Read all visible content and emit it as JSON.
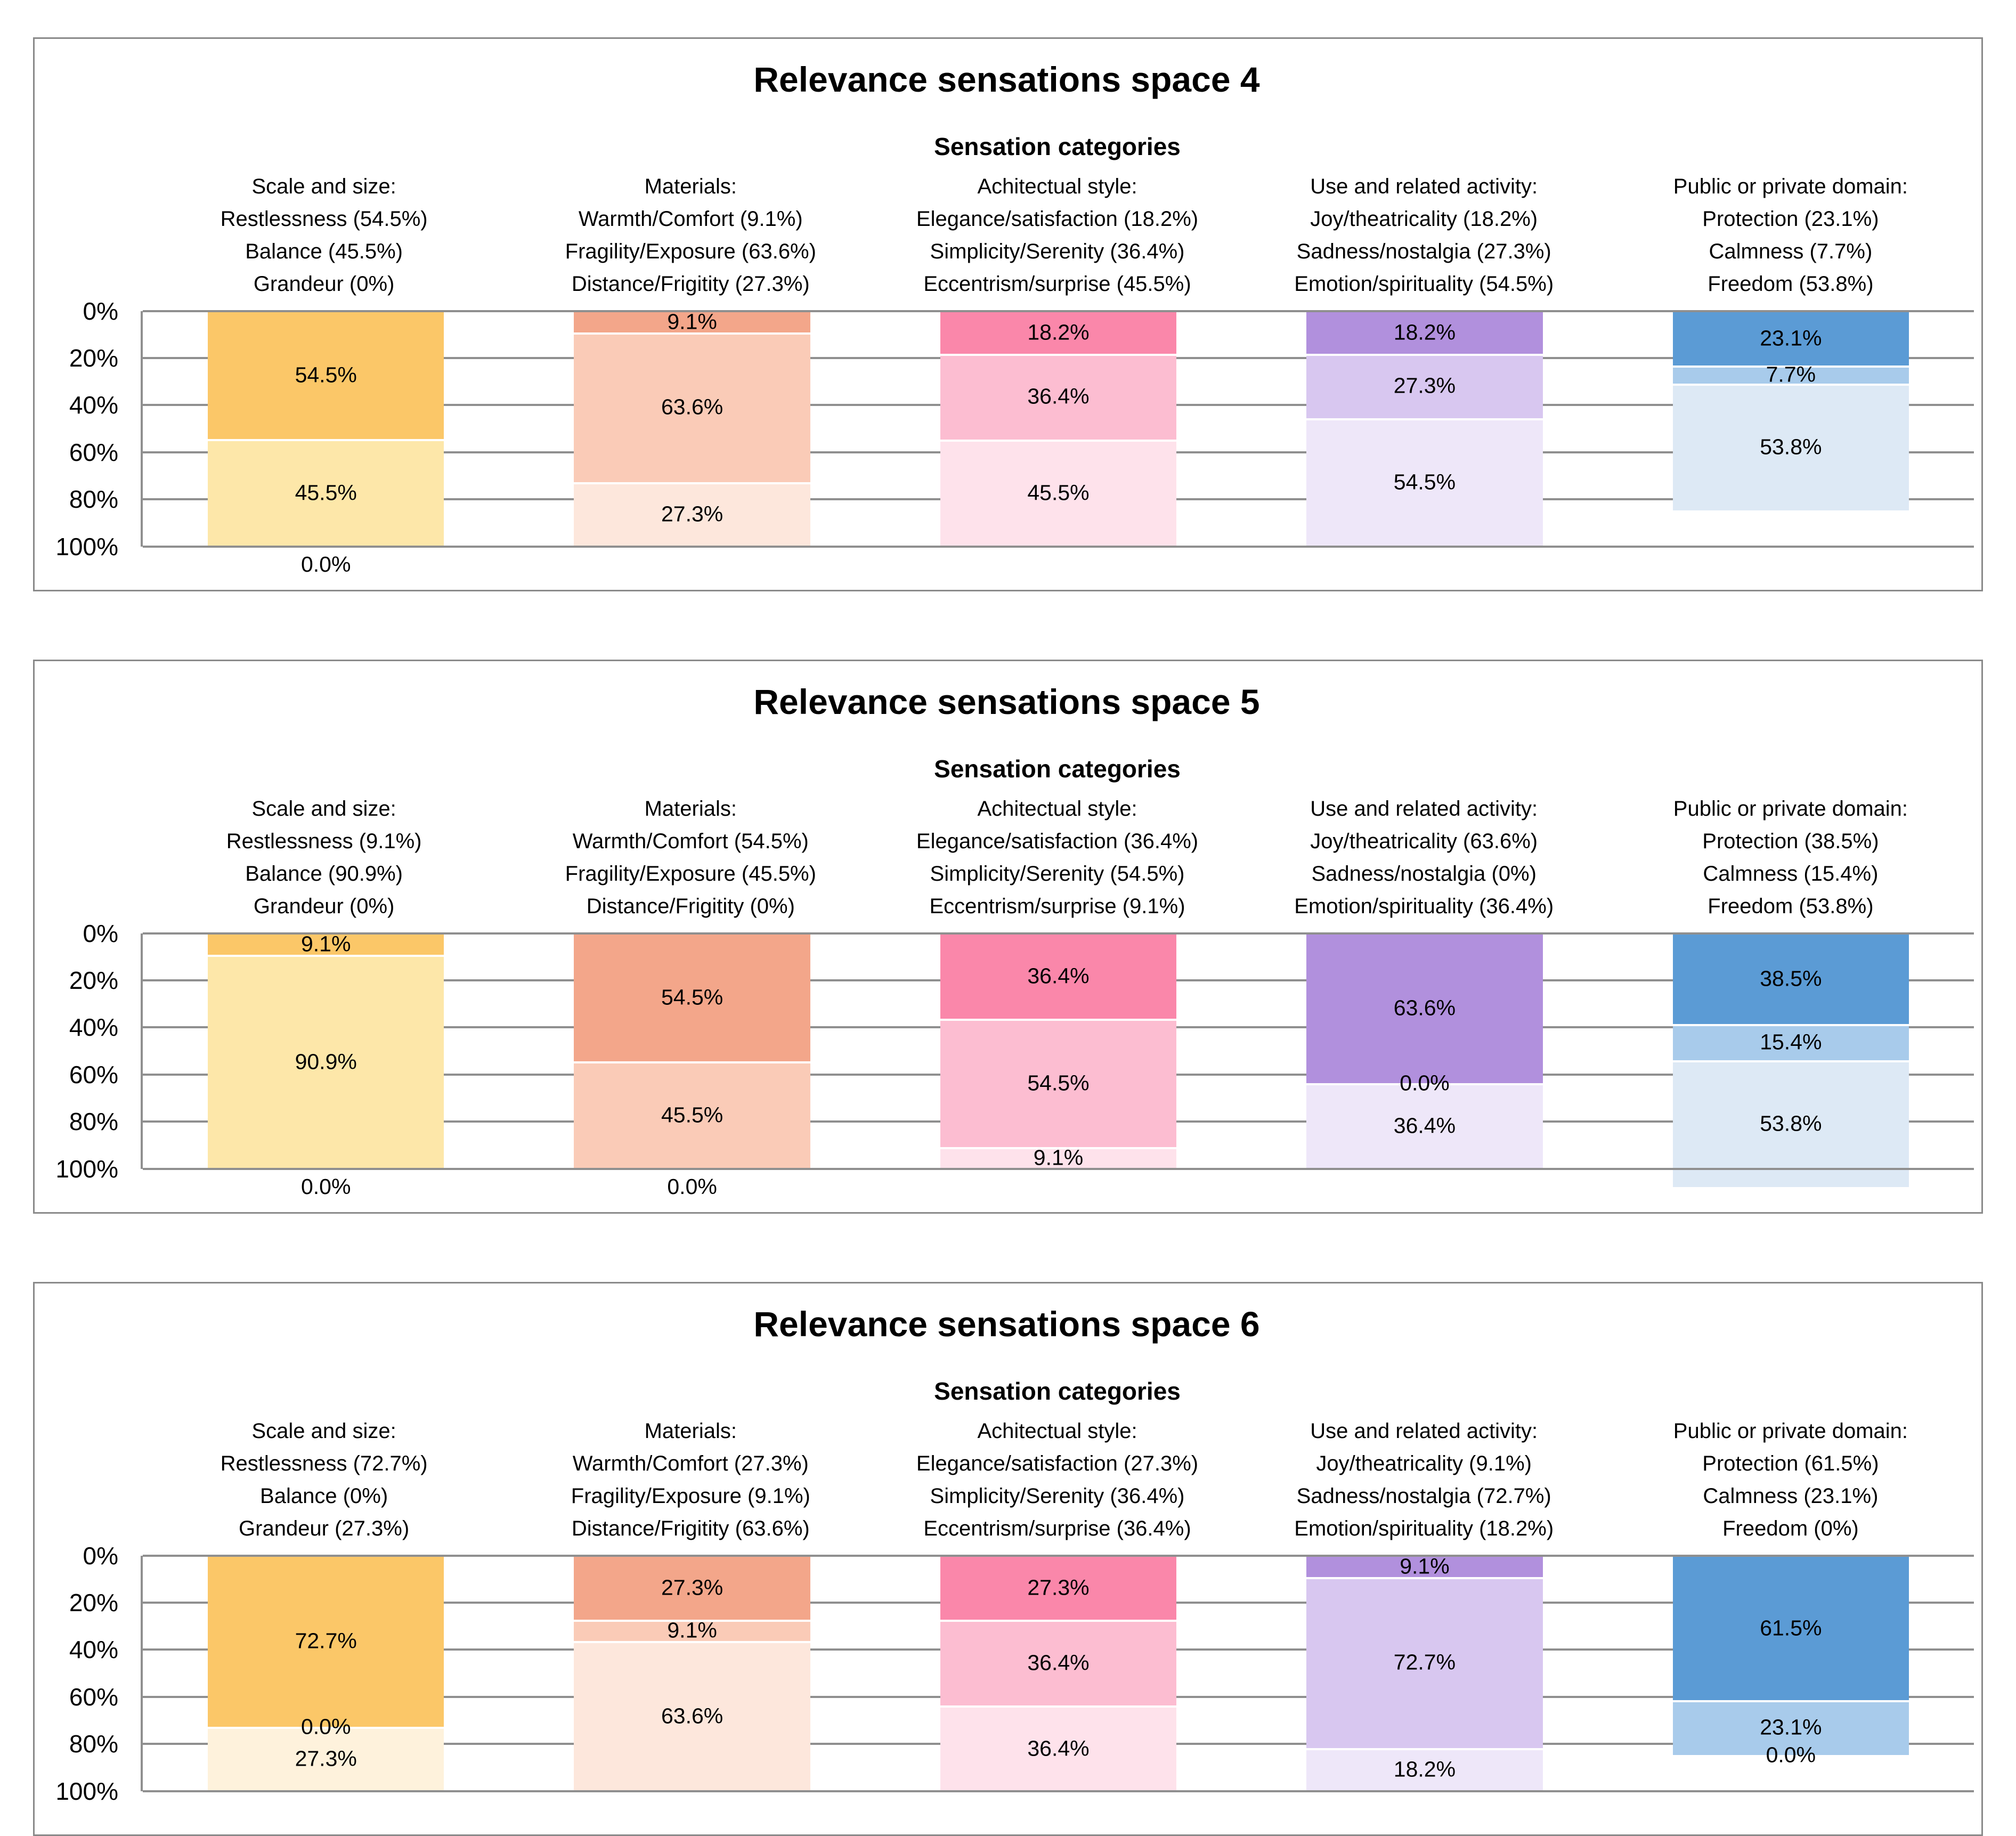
{
  "colors": {
    "page_background": "#ffffff",
    "card_border": "#8a8a8a",
    "grid_line": "#8f8f8f",
    "label_text": "#000000"
  },
  "y_ticks": [
    "0%",
    "20%",
    "40%",
    "60%",
    "80%",
    "100%"
  ],
  "palette": [
    [
      "#FBC768",
      "#FDE7A9",
      "#FEF2DC"
    ],
    [
      "#F3A68A",
      "#FACBB7",
      "#FDE7DC"
    ],
    [
      "#FA87AA",
      "#FCBDD1",
      "#FEE2EB"
    ],
    [
      "#B190DD",
      "#D8C7F0",
      "#EEE7F9"
    ],
    [
      "#5B9BD5",
      "#A8CBEB",
      "#DDE9F5"
    ]
  ],
  "chart_data": [
    {
      "type": "bar",
      "stacked": true,
      "inverted_percent_axis": true,
      "title": "Relevance sensations space 4",
      "subtitle": "Sensation categories",
      "ylim": [
        0,
        100
      ],
      "grid": true,
      "categories": [
        {
          "header": "Scale and size:",
          "items": [
            {
              "label": "Restlessness (54.5%)",
              "value": 54.5,
              "bar_label": "54.5%"
            },
            {
              "label": "Balance (45.5%)",
              "value": 45.5,
              "bar_label": "45.5%"
            },
            {
              "label": "Grandeur (0%)",
              "value": 0,
              "bar_label": "0.0%"
            }
          ]
        },
        {
          "header": "Materials:",
          "items": [
            {
              "label": "Warmth/Comfort (9.1%)",
              "value": 9.1,
              "bar_label": "9.1%"
            },
            {
              "label": "Fragility/Exposure (63.6%)",
              "value": 63.6,
              "bar_label": "63.6%"
            },
            {
              "label": "Distance/Frigitity (27.3%)",
              "value": 27.3,
              "bar_label": "27.3%"
            }
          ]
        },
        {
          "header": "Achitectual style:",
          "items": [
            {
              "label": "Elegance/satisfaction (18.2%)",
              "value": 18.2,
              "bar_label": "18.2%"
            },
            {
              "label": "Simplicity/Serenity (36.4%)",
              "value": 36.4,
              "bar_label": "36.4%"
            },
            {
              "label": "Eccentrism/surprise (45.5%)",
              "value": 45.5,
              "bar_label": "45.5%"
            }
          ]
        },
        {
          "header": "Use and related activity:",
          "items": [
            {
              "label": "Joy/theatricality (18.2%)",
              "value": 18.2,
              "bar_label": "18.2%"
            },
            {
              "label": "Sadness/nostalgia (27.3%)",
              "value": 27.3,
              "bar_label": "27.3%"
            },
            {
              "label": "Emotion/spirituality (54.5%)",
              "value": 54.5,
              "bar_label": "54.5%"
            }
          ]
        },
        {
          "header": "Public or private domain:",
          "items": [
            {
              "label": "Protection (23.1%)",
              "value": 23.1,
              "bar_label": "23.1%"
            },
            {
              "label": "Calmness (7.7%)",
              "value": 7.7,
              "bar_label": "7.7%"
            },
            {
              "label": "Freedom (53.8%)",
              "value": 53.8,
              "bar_label": "53.8%"
            }
          ]
        }
      ]
    },
    {
      "type": "bar",
      "stacked": true,
      "inverted_percent_axis": true,
      "title": "Relevance sensations space 5",
      "subtitle": "Sensation categories",
      "ylim": [
        0,
        100
      ],
      "grid": true,
      "categories": [
        {
          "header": "Scale and size:",
          "items": [
            {
              "label": "Restlessness (9.1%)",
              "value": 9.1,
              "bar_label": "9.1%"
            },
            {
              "label": "Balance (90.9%)",
              "value": 90.9,
              "bar_label": "90.9%"
            },
            {
              "label": "Grandeur (0%)",
              "value": 0,
              "bar_label": "0.0%"
            }
          ]
        },
        {
          "header": "Materials:",
          "items": [
            {
              "label": "Warmth/Comfort (54.5%)",
              "value": 54.5,
              "bar_label": "54.5%"
            },
            {
              "label": "Fragility/Exposure (45.5%)",
              "value": 45.5,
              "bar_label": "45.5%"
            },
            {
              "label": "Distance/Frigitity (0%)",
              "value": 0,
              "bar_label": "0.0%"
            }
          ]
        },
        {
          "header": "Achitectual style:",
          "items": [
            {
              "label": "Elegance/satisfaction (36.4%)",
              "value": 36.4,
              "bar_label": "36.4%"
            },
            {
              "label": "Simplicity/Serenity (54.5%)",
              "value": 54.5,
              "bar_label": "54.5%"
            },
            {
              "label": "Eccentrism/surprise (9.1%)",
              "value": 9.1,
              "bar_label": "9.1%"
            }
          ]
        },
        {
          "header": "Use and related activity:",
          "items": [
            {
              "label": "Joy/theatricality (63.6%)",
              "value": 63.6,
              "bar_label": "63.6%"
            },
            {
              "label": "Sadness/nostalgia (0%)",
              "value": 0,
              "bar_label": "0.0%"
            },
            {
              "label": "Emotion/spirituality (36.4%)",
              "value": 36.4,
              "bar_label": "36.4%"
            }
          ]
        },
        {
          "header": "Public or private domain:",
          "items": [
            {
              "label": "Protection (38.5%)",
              "value": 38.5,
              "bar_label": "38.5%"
            },
            {
              "label": "Calmness (15.4%)",
              "value": 15.4,
              "bar_label": "15.4%"
            },
            {
              "label": "Freedom (53.8%)",
              "value": 53.8,
              "bar_label": "53.8%"
            }
          ]
        }
      ]
    },
    {
      "type": "bar",
      "stacked": true,
      "inverted_percent_axis": true,
      "title": "Relevance sensations space 6",
      "subtitle": "Sensation categories",
      "ylim": [
        0,
        100
      ],
      "grid": true,
      "categories": [
        {
          "header": "Scale and size:",
          "items": [
            {
              "label": "Restlessness (72.7%)",
              "value": 72.7,
              "bar_label": "72.7%"
            },
            {
              "label": "Balance (0%)",
              "value": 0,
              "bar_label": "0.0%"
            },
            {
              "label": "Grandeur (27.3%)",
              "value": 27.3,
              "bar_label": "27.3%"
            }
          ]
        },
        {
          "header": "Materials:",
          "items": [
            {
              "label": "Warmth/Comfort (27.3%)",
              "value": 27.3,
              "bar_label": "27.3%"
            },
            {
              "label": "Fragility/Exposure (9.1%)",
              "value": 9.1,
              "bar_label": "9.1%"
            },
            {
              "label": "Distance/Frigitity (63.6%)",
              "value": 63.6,
              "bar_label": "63.6%"
            }
          ]
        },
        {
          "header": "Achitectual style:",
          "items": [
            {
              "label": "Elegance/satisfaction (27.3%)",
              "value": 27.3,
              "bar_label": "27.3%"
            },
            {
              "label": "Simplicity/Serenity (36.4%)",
              "value": 36.4,
              "bar_label": "36.4%"
            },
            {
              "label": "Eccentrism/surprise (36.4%)",
              "value": 36.4,
              "bar_label": "36.4%"
            }
          ]
        },
        {
          "header": "Use and related activity:",
          "items": [
            {
              "label": "Joy/theatricality (9.1%)",
              "value": 9.1,
              "bar_label": "9.1%"
            },
            {
              "label": "Sadness/nostalgia (72.7%)",
              "value": 72.7,
              "bar_label": "72.7%"
            },
            {
              "label": "Emotion/spirituality (18.2%)",
              "value": 18.2,
              "bar_label": "18.2%"
            }
          ]
        },
        {
          "header": "Public or private domain:",
          "items": [
            {
              "label": "Protection (61.5%)",
              "value": 61.5,
              "bar_label": "61.5%"
            },
            {
              "label": "Calmness (23.1%)",
              "value": 23.1,
              "bar_label": "23.1%"
            },
            {
              "label": "Freedom (0%)",
              "value": 0,
              "bar_label": "0.0%"
            }
          ]
        }
      ]
    }
  ]
}
